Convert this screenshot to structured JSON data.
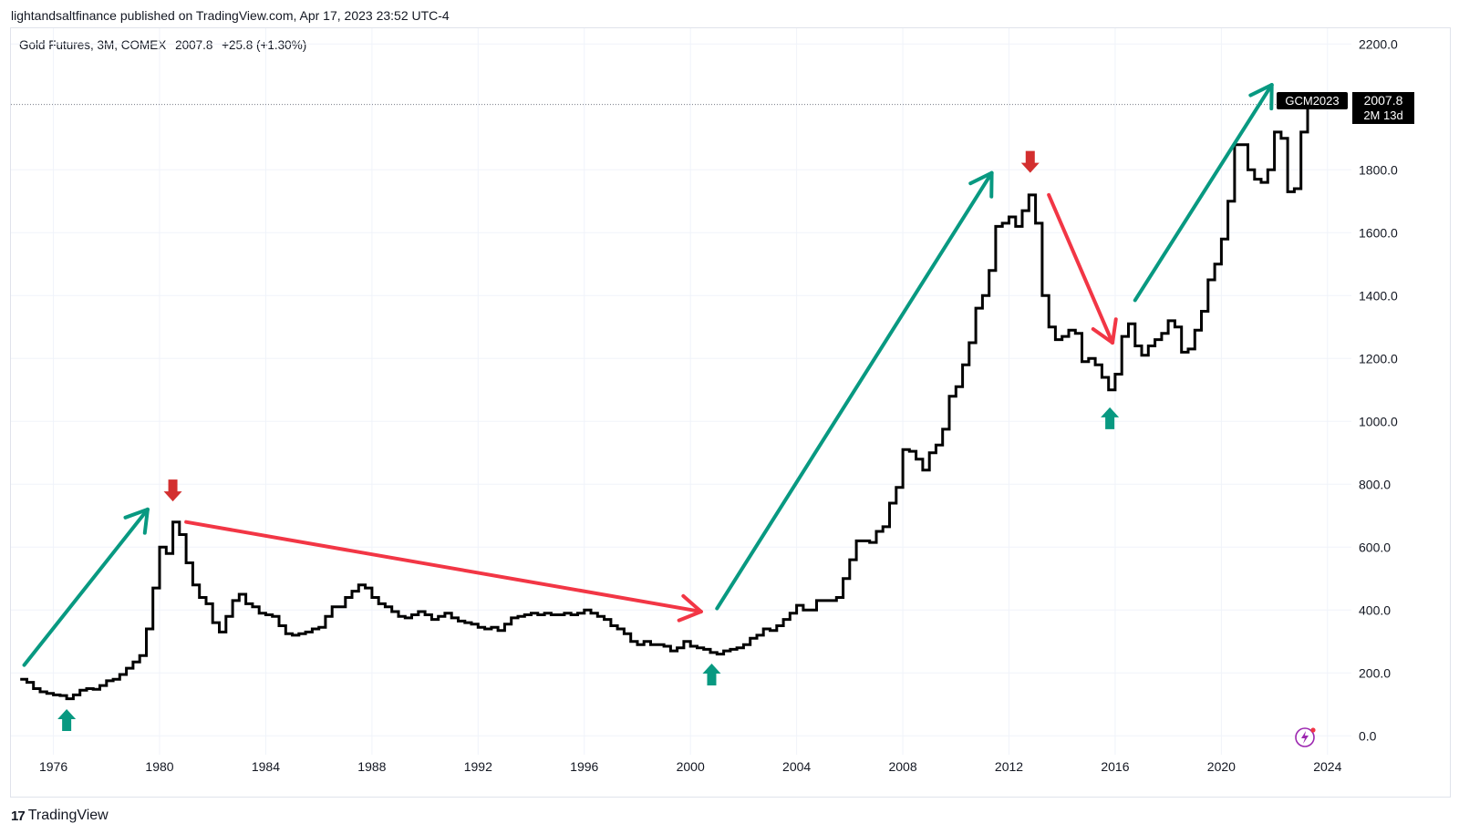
{
  "header": {
    "published": "lightandsaltfinance published on TradingView.com, Apr 17, 2023 23:52 UTC-4"
  },
  "legend": {
    "symbol": "Gold Futures, 3M, COMEX",
    "last": "2007.8",
    "change": "+25.8 (+1.30%)"
  },
  "footer": {
    "brand": "TradingView"
  },
  "price_label": {
    "ticker": "GCM2023",
    "price": "2007.8",
    "countdown": "2M 13d"
  },
  "colors": {
    "line": "#000000",
    "up": "#089981",
    "down": "#f23645",
    "grid": "#f0f3fa",
    "accent": "#9c27b0"
  },
  "chart_data": {
    "type": "line",
    "style": "step",
    "title": "Gold Futures, 3M, COMEX",
    "xlabel": "",
    "ylabel": "",
    "xlim": [
      1974.4,
      2024.9
    ],
    "ylim": [
      -60,
      2250
    ],
    "x_ticks": [
      1976,
      1980,
      1984,
      1988,
      1992,
      1996,
      2000,
      2004,
      2008,
      2012,
      2016,
      2020,
      2024
    ],
    "y_ticks": [
      "2200.0",
      "1800.0",
      "1600.0",
      "1400.0",
      "1200.0",
      "1000.0",
      "800.0",
      "600.0",
      "400.0",
      "200.0",
      "0.0"
    ],
    "current_price": 2007.8,
    "series": [
      {
        "name": "GCM2023",
        "points": [
          [
            1974.75,
            180
          ],
          [
            1975.0,
            170
          ],
          [
            1975.25,
            150
          ],
          [
            1975.5,
            140
          ],
          [
            1975.75,
            135
          ],
          [
            1976.0,
            130
          ],
          [
            1976.25,
            128
          ],
          [
            1976.5,
            118
          ],
          [
            1976.75,
            130
          ],
          [
            1977.0,
            145
          ],
          [
            1977.25,
            150
          ],
          [
            1977.5,
            148
          ],
          [
            1977.75,
            160
          ],
          [
            1978.0,
            175
          ],
          [
            1978.25,
            180
          ],
          [
            1978.5,
            195
          ],
          [
            1978.75,
            215
          ],
          [
            1979.0,
            235
          ],
          [
            1979.25,
            255
          ],
          [
            1979.5,
            340
          ],
          [
            1979.75,
            470
          ],
          [
            1980.0,
            600
          ],
          [
            1980.25,
            580
          ],
          [
            1980.5,
            680
          ],
          [
            1980.75,
            640
          ],
          [
            1981.0,
            550
          ],
          [
            1981.25,
            480
          ],
          [
            1981.5,
            440
          ],
          [
            1981.75,
            420
          ],
          [
            1982.0,
            360
          ],
          [
            1982.25,
            330
          ],
          [
            1982.5,
            380
          ],
          [
            1982.75,
            430
          ],
          [
            1983.0,
            450
          ],
          [
            1983.25,
            420
          ],
          [
            1983.5,
            410
          ],
          [
            1983.75,
            390
          ],
          [
            1984.0,
            385
          ],
          [
            1984.25,
            380
          ],
          [
            1984.5,
            350
          ],
          [
            1984.75,
            325
          ],
          [
            1985.0,
            320
          ],
          [
            1985.25,
            325
          ],
          [
            1985.5,
            330
          ],
          [
            1985.75,
            340
          ],
          [
            1986.0,
            345
          ],
          [
            1986.25,
            380
          ],
          [
            1986.5,
            410
          ],
          [
            1986.75,
            410
          ],
          [
            1987.0,
            440
          ],
          [
            1987.25,
            460
          ],
          [
            1987.5,
            480
          ],
          [
            1987.75,
            470
          ],
          [
            1988.0,
            440
          ],
          [
            1988.25,
            420
          ],
          [
            1988.5,
            410
          ],
          [
            1988.75,
            395
          ],
          [
            1989.0,
            380
          ],
          [
            1989.25,
            375
          ],
          [
            1989.5,
            385
          ],
          [
            1989.75,
            395
          ],
          [
            1990.0,
            385
          ],
          [
            1990.25,
            370
          ],
          [
            1990.5,
            380
          ],
          [
            1990.75,
            390
          ],
          [
            1991.0,
            375
          ],
          [
            1991.25,
            365
          ],
          [
            1991.5,
            360
          ],
          [
            1991.75,
            355
          ],
          [
            1992.0,
            345
          ],
          [
            1992.25,
            340
          ],
          [
            1992.5,
            345
          ],
          [
            1992.75,
            335
          ],
          [
            1993.0,
            355
          ],
          [
            1993.25,
            375
          ],
          [
            1993.5,
            380
          ],
          [
            1993.75,
            385
          ],
          [
            1994.0,
            390
          ],
          [
            1994.25,
            385
          ],
          [
            1994.5,
            390
          ],
          [
            1994.75,
            385
          ],
          [
            1995.0,
            385
          ],
          [
            1995.25,
            390
          ],
          [
            1995.5,
            385
          ],
          [
            1995.75,
            390
          ],
          [
            1996.0,
            400
          ],
          [
            1996.25,
            390
          ],
          [
            1996.5,
            380
          ],
          [
            1996.75,
            370
          ],
          [
            1997.0,
            350
          ],
          [
            1997.25,
            340
          ],
          [
            1997.5,
            325
          ],
          [
            1997.75,
            300
          ],
          [
            1998.0,
            290
          ],
          [
            1998.25,
            300
          ],
          [
            1998.5,
            290
          ],
          [
            1998.75,
            290
          ],
          [
            1999.0,
            285
          ],
          [
            1999.25,
            270
          ],
          [
            1999.5,
            280
          ],
          [
            1999.75,
            300
          ],
          [
            2000.0,
            285
          ],
          [
            2000.25,
            280
          ],
          [
            2000.5,
            275
          ],
          [
            2000.75,
            265
          ],
          [
            2001.0,
            260
          ],
          [
            2001.25,
            270
          ],
          [
            2001.5,
            275
          ],
          [
            2001.75,
            280
          ],
          [
            2002.0,
            290
          ],
          [
            2002.25,
            310
          ],
          [
            2002.5,
            320
          ],
          [
            2002.75,
            340
          ],
          [
            2003.0,
            335
          ],
          [
            2003.25,
            350
          ],
          [
            2003.5,
            370
          ],
          [
            2003.75,
            390
          ],
          [
            2004.0,
            415
          ],
          [
            2004.25,
            400
          ],
          [
            2004.5,
            400
          ],
          [
            2004.75,
            430
          ],
          [
            2005.0,
            430
          ],
          [
            2005.25,
            430
          ],
          [
            2005.5,
            440
          ],
          [
            2005.75,
            500
          ],
          [
            2006.0,
            560
          ],
          [
            2006.25,
            620
          ],
          [
            2006.5,
            620
          ],
          [
            2006.75,
            615
          ],
          [
            2007.0,
            650
          ],
          [
            2007.25,
            665
          ],
          [
            2007.5,
            740
          ],
          [
            2007.75,
            790
          ],
          [
            2008.0,
            910
          ],
          [
            2008.25,
            905
          ],
          [
            2008.5,
            880
          ],
          [
            2008.75,
            845
          ],
          [
            2009.0,
            900
          ],
          [
            2009.25,
            925
          ],
          [
            2009.5,
            975
          ],
          [
            2009.75,
            1080
          ],
          [
            2010.0,
            1110
          ],
          [
            2010.25,
            1180
          ],
          [
            2010.5,
            1250
          ],
          [
            2010.75,
            1360
          ],
          [
            2011.0,
            1400
          ],
          [
            2011.25,
            1480
          ],
          [
            2011.5,
            1620
          ],
          [
            2011.75,
            1630
          ],
          [
            2012.0,
            1650
          ],
          [
            2012.25,
            1620
          ],
          [
            2012.5,
            1670
          ],
          [
            2012.75,
            1720
          ],
          [
            2013.0,
            1630
          ],
          [
            2013.25,
            1400
          ],
          [
            2013.5,
            1300
          ],
          [
            2013.75,
            1260
          ],
          [
            2014.0,
            1270
          ],
          [
            2014.25,
            1290
          ],
          [
            2014.5,
            1280
          ],
          [
            2014.75,
            1190
          ],
          [
            2015.0,
            1200
          ],
          [
            2015.25,
            1180
          ],
          [
            2015.5,
            1140
          ],
          [
            2015.75,
            1100
          ],
          [
            2016.0,
            1150
          ],
          [
            2016.25,
            1270
          ],
          [
            2016.5,
            1310
          ],
          [
            2016.75,
            1240
          ],
          [
            2017.0,
            1210
          ],
          [
            2017.25,
            1240
          ],
          [
            2017.5,
            1260
          ],
          [
            2017.75,
            1280
          ],
          [
            2018.0,
            1320
          ],
          [
            2018.25,
            1300
          ],
          [
            2018.5,
            1220
          ],
          [
            2018.75,
            1230
          ],
          [
            2019.0,
            1290
          ],
          [
            2019.25,
            1350
          ],
          [
            2019.5,
            1450
          ],
          [
            2019.75,
            1500
          ],
          [
            2020.0,
            1580
          ],
          [
            2020.25,
            1700
          ],
          [
            2020.5,
            1880
          ],
          [
            2020.75,
            1880
          ],
          [
            2021.0,
            1800
          ],
          [
            2021.25,
            1770
          ],
          [
            2021.5,
            1760
          ],
          [
            2021.75,
            1800
          ],
          [
            2022.0,
            1920
          ],
          [
            2022.25,
            1900
          ],
          [
            2022.5,
            1730
          ],
          [
            2022.75,
            1740
          ],
          [
            2023.0,
            1920
          ],
          [
            2023.25,
            2007.8
          ]
        ]
      }
    ],
    "annotations": [
      {
        "type": "trend-arrow",
        "direction": "up",
        "color": "#089981",
        "from": [
          1974.9,
          225
        ],
        "to": [
          1979.55,
          720
        ]
      },
      {
        "type": "trend-arrow",
        "direction": "down",
        "color": "#f23645",
        "from": [
          1981.0,
          680
        ],
        "to": [
          2000.4,
          395
        ]
      },
      {
        "type": "trend-arrow",
        "direction": "up",
        "color": "#089981",
        "from": [
          2001.0,
          405
        ],
        "to": [
          2011.35,
          1790
        ]
      },
      {
        "type": "trend-arrow",
        "direction": "down",
        "color": "#f23645",
        "from": [
          2013.5,
          1720
        ],
        "to": [
          2015.9,
          1250
        ]
      },
      {
        "type": "trend-arrow",
        "direction": "up",
        "color": "#089981",
        "from": [
          2016.75,
          1385
        ],
        "to": [
          2021.9,
          2070
        ]
      },
      {
        "type": "turn-marker",
        "direction": "up",
        "color": "#089981",
        "at": [
          1976.5,
          50
        ]
      },
      {
        "type": "turn-marker",
        "direction": "down",
        "color": "#d32f2f",
        "at": [
          1980.5,
          780
        ]
      },
      {
        "type": "turn-marker",
        "direction": "up",
        "color": "#089981",
        "at": [
          2000.8,
          195
        ]
      },
      {
        "type": "turn-marker",
        "direction": "down",
        "color": "#d32f2f",
        "at": [
          2012.8,
          1825
        ]
      },
      {
        "type": "turn-marker",
        "direction": "up",
        "color": "#089981",
        "at": [
          2015.8,
          1010
        ]
      }
    ]
  }
}
